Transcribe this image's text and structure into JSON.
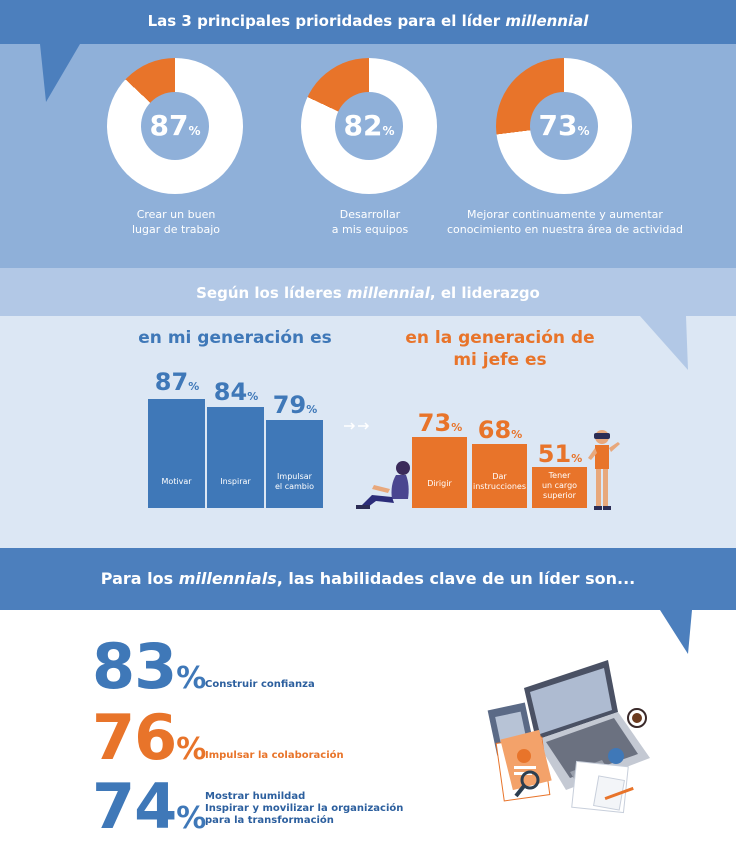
{
  "section1": {
    "title_plain": "Las 3 principales prioridades para el líder ",
    "title_italic": "millennial",
    "donuts": [
      {
        "value": 87,
        "unit": "%",
        "caption_line1": "Crear un buen",
        "caption_line2": "lugar de trabajo"
      },
      {
        "value": 82,
        "unit": "%",
        "caption_line1": "Desarrollar",
        "caption_line2": "a mis equipos"
      },
      {
        "value": 73,
        "unit": "%",
        "caption_line1": "Mejorar continuamente y aumentar",
        "caption_line2": "conocimiento en nuestra área de actividad"
      }
    ],
    "colors": {
      "ring": "#ffffff",
      "slice": "#e8742a",
      "bg": "#8fb0d9"
    }
  },
  "section2": {
    "title_prefix": "Según los líderes ",
    "title_italic": "millennial",
    "title_suffix": ", el liderazgo",
    "my_gen": {
      "title": "en mi generación es",
      "bars": [
        {
          "value": 87,
          "unit": "%",
          "label_lines": [
            "Motivar"
          ]
        },
        {
          "value": 84,
          "unit": "%",
          "label_lines": [
            "Inspirar"
          ]
        },
        {
          "value": 79,
          "unit": "%",
          "label_lines": [
            "Impulsar",
            "el cambio"
          ]
        }
      ],
      "color": "#3f78b8"
    },
    "boss_gen": {
      "title_line1": "en la generación de",
      "title_line2": "mi jefe es",
      "bars": [
        {
          "value": 73,
          "unit": "%",
          "label_lines": [
            "Dirigir"
          ]
        },
        {
          "value": 68,
          "unit": "%",
          "label_lines": [
            "Dar",
            "instrucciones"
          ]
        },
        {
          "value": 51,
          "unit": "%",
          "label_lines": [
            "Tener",
            "un cargo",
            "superior"
          ]
        }
      ],
      "color": "#e8742a"
    }
  },
  "section3": {
    "title_prefix": "Para los ",
    "title_italic": "millennials",
    "title_suffix": ", las habilidades clave de un líder son...",
    "skills": [
      {
        "value": "83",
        "unit": "%",
        "lines": [
          "Construir confianza"
        ],
        "color": "#3f78b8"
      },
      {
        "value": "76",
        "unit": "%",
        "lines": [
          "Impulsar la colaboración"
        ],
        "color": "#e8742a"
      },
      {
        "value": "74",
        "unit": "%",
        "lines": [
          "Mostrar humildad",
          "Inspirar y movilizar la organización",
          "para la transformación"
        ],
        "color": "#3f78b8"
      }
    ]
  }
}
